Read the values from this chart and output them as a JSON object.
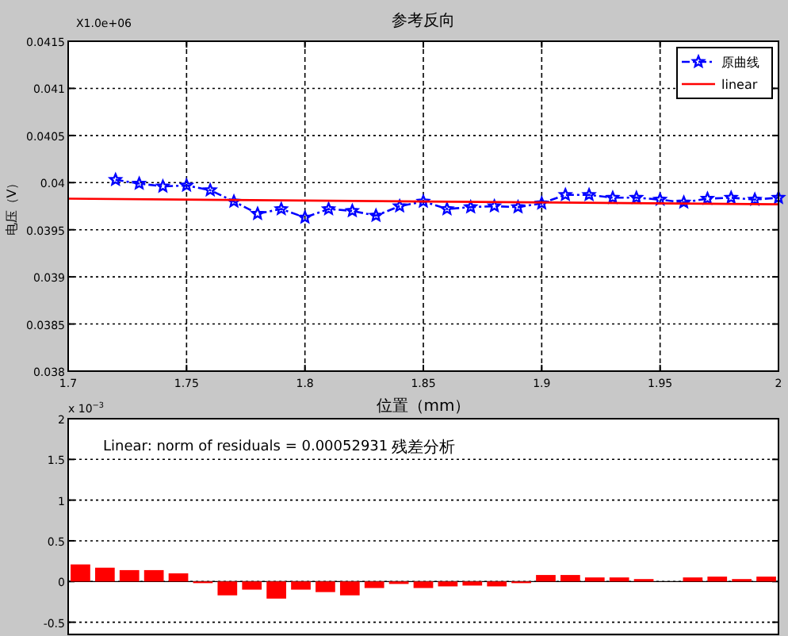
{
  "chart_data": [
    {
      "type": "line",
      "title": "参考反向",
      "xlabel": "位置（mm）",
      "ylabel": "电压（V）",
      "annotations": [
        "X1.0e+06"
      ],
      "xlim": [
        1.7,
        2
      ],
      "xticks": [
        1.7,
        1.75,
        1.8,
        1.85,
        1.9,
        1.95,
        2
      ],
      "ylim": [
        0.038,
        0.0415
      ],
      "yticks": [
        0.038,
        0.0385,
        0.039,
        0.0395,
        0.04,
        0.0405,
        0.041,
        0.0415
      ],
      "grid": true,
      "legend": "top right",
      "series": [
        {
          "name": "原曲线",
          "color": "#0000ff",
          "marker": "star",
          "line_style": "dashed",
          "x": [
            1.72,
            1.73,
            1.74,
            1.75,
            1.76,
            1.77,
            1.78,
            1.79,
            1.8,
            1.81,
            1.82,
            1.83,
            1.84,
            1.85,
            1.86,
            1.87,
            1.88,
            1.89,
            1.9,
            1.91,
            1.92,
            1.93,
            1.94,
            1.95,
            1.96,
            1.97,
            1.98,
            1.99,
            2.0
          ],
          "values": [
            0.04003,
            0.03999,
            0.03996,
            0.03997,
            0.03992,
            0.0398,
            0.03967,
            0.03972,
            0.03963,
            0.03972,
            0.0397,
            0.03965,
            0.03975,
            0.0398,
            0.03972,
            0.03974,
            0.03975,
            0.03974,
            0.03978,
            0.03987,
            0.03987,
            0.03984,
            0.03984,
            0.03982,
            0.03979,
            0.03983,
            0.03984,
            0.03982,
            0.03984
          ]
        },
        {
          "name": "linear",
          "color": "#ff0000",
          "marker": "none",
          "line_style": "solid",
          "x": [
            1.7,
            2.0
          ],
          "values": [
            0.03983,
            0.03977
          ]
        }
      ]
    },
    {
      "type": "bar",
      "title": "残差分析",
      "annotations": [
        "Linear: norm of residuals = 0.00052931",
        "x 10$^{−3}$"
      ],
      "categories": [
        null,
        null,
        null,
        null,
        null,
        null,
        null,
        null,
        null,
        null,
        null,
        null,
        null,
        null,
        null,
        null,
        null,
        null,
        null,
        null,
        null,
        null,
        null,
        null,
        null,
        null,
        null,
        null,
        null
      ],
      "values": [
        0.21,
        0.17,
        0.14,
        0.14,
        0.1,
        -0.02,
        -0.17,
        -0.1,
        -0.21,
        -0.1,
        -0.13,
        -0.17,
        -0.08,
        -0.03,
        -0.08,
        -0.06,
        -0.05,
        -0.06,
        -0.02,
        0.08,
        0.08,
        0.05,
        0.05,
        0.03,
        0,
        0.05,
        0.06,
        0.03,
        0.06
      ],
      "color": "#ff0000",
      "ylim": [
        -0.65,
        2
      ],
      "yticks": [
        2,
        1.5,
        1,
        0.5,
        0,
        -0.5
      ],
      "grid": "y"
    }
  ]
}
